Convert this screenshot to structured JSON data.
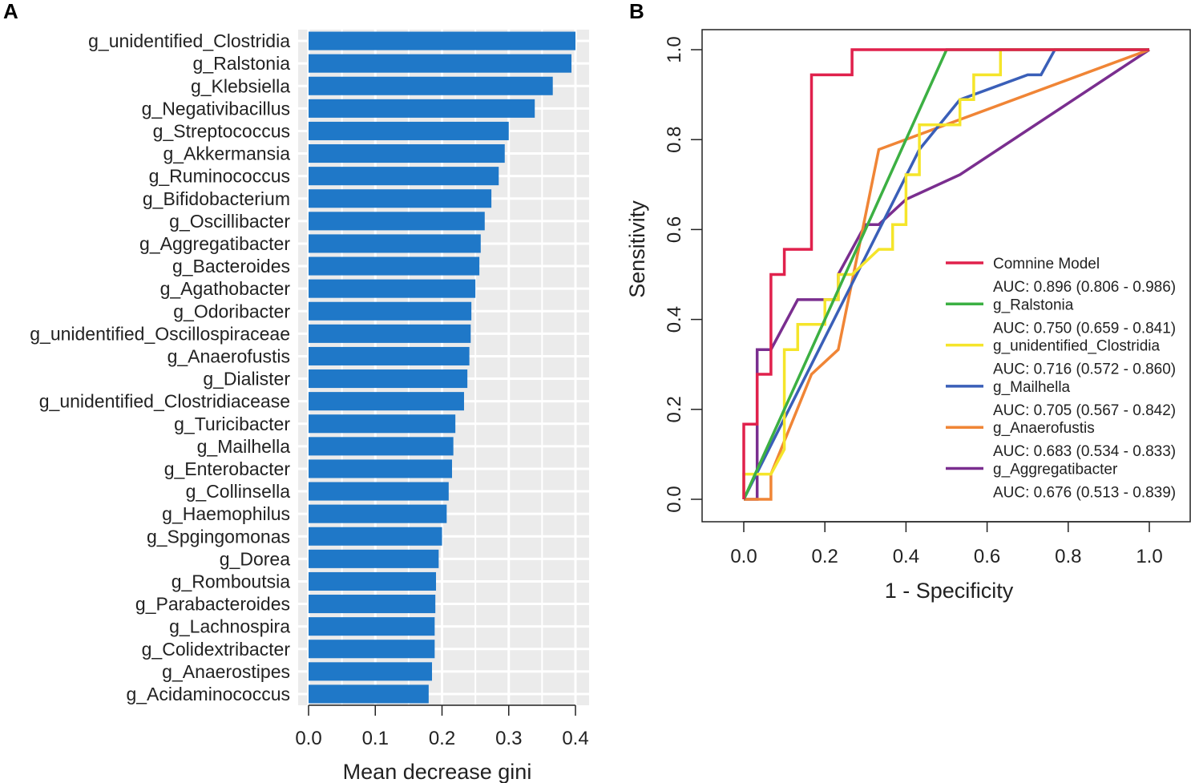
{
  "chart_data": [
    {
      "panel": "A",
      "type": "bar",
      "orientation": "horizontal",
      "xlabel": "Mean decrease gini",
      "ylabel": "",
      "xlim": [
        0.0,
        0.42
      ],
      "xticks": [
        "0.0",
        "0.1",
        "0.2",
        "0.3",
        "0.4"
      ],
      "grid": true,
      "bar_color": "#1f78c8",
      "background_color": "#ebebeb",
      "categories": [
        "g_unidentified_Clostridia",
        "g_Ralstonia",
        "g_Klebsiella",
        "g_Negativibacillus",
        "g_Streptococcus",
        "g_Akkermansia",
        "g_Ruminococcus",
        "g_Bifidobacterium",
        "g_Oscillibacter",
        "g_Aggregatibacter",
        "g_Bacteroides",
        "g_Agathobacter",
        "g_Odoribacter",
        "g_unidentified_Oscillospiraceae",
        "g_Anaerofustis",
        "g_Dialister",
        "g_unidentified_Clostridiacease",
        "g_Turicibacter",
        "g_Mailhella",
        "g_Enterobacter",
        "g_Collinsella",
        "g_Haemophilus",
        "g_Spgingomonas",
        "g_Dorea",
        "g_Romboutsia",
        "g_Parabacteroides",
        "g_Lachnospira",
        "g_Colidextribacter",
        "g_Anaerostipes",
        "g_Acidaminococcus"
      ],
      "values": [
        0.4,
        0.394,
        0.366,
        0.339,
        0.3,
        0.294,
        0.285,
        0.274,
        0.264,
        0.258,
        0.256,
        0.25,
        0.244,
        0.243,
        0.241,
        0.238,
        0.233,
        0.22,
        0.217,
        0.215,
        0.21,
        0.207,
        0.2,
        0.195,
        0.191,
        0.19,
        0.189,
        0.189,
        0.185,
        0.18
      ]
    },
    {
      "panel": "B",
      "type": "line",
      "xlabel": "1 - Specificity",
      "ylabel": "Sensitivity",
      "xlim": [
        -0.1,
        1.1
      ],
      "ylim": [
        -0.05,
        1.05
      ],
      "xticks": [
        "0.0",
        "0.2",
        "0.4",
        "0.6",
        "0.8",
        "1.0"
      ],
      "yticks": [
        "0.0",
        "0.2",
        "0.4",
        "0.6",
        "0.8",
        "1.0"
      ],
      "grid": false,
      "legend_position": "bottom-right",
      "series": [
        {
          "name": "Comnine Model",
          "auc": "AUC: 0.896 (0.806 - 0.986)",
          "color": "#e0214c",
          "x": [
            0,
            0,
            0.033,
            0.033,
            0.067,
            0.067,
            0.067,
            0.1,
            0.1,
            0.167,
            0.167,
            0.167,
            0.267,
            0.267,
            1
          ],
          "y": [
            0,
            0.167,
            0.167,
            0.278,
            0.278,
            0.5,
            0.5,
            0.5,
            0.556,
            0.556,
            0.944,
            0.944,
            0.944,
            1,
            1
          ]
        },
        {
          "name": "g_Ralstonia",
          "auc": "AUC: 0.750 (0.659 - 0.841)",
          "color": "#3cb043",
          "x": [
            0,
            0.5,
            1
          ],
          "y": [
            0,
            1,
            1
          ]
        },
        {
          "name": "g_unidentified_Clostridia",
          "auc": "AUC: 0.716 (0.572 - 0.860)",
          "color": "#f5e52a",
          "x": [
            0,
            0,
            0.067,
            0.067,
            0.1,
            0.1,
            0.133,
            0.133,
            0.167,
            0.2,
            0.2,
            0.233,
            0.233,
            0.267,
            0.333,
            0.367,
            0.367,
            0.4,
            0.4,
            0.433,
            0.433,
            0.467,
            0.5,
            0.533,
            0.533,
            0.567,
            0.567,
            0.633,
            0.633,
            1
          ],
          "y": [
            0,
            0.056,
            0.056,
            0.056,
            0.111,
            0.333,
            0.333,
            0.389,
            0.389,
            0.389,
            0.444,
            0.444,
            0.5,
            0.5,
            0.556,
            0.556,
            0.611,
            0.611,
            0.722,
            0.722,
            0.833,
            0.833,
            0.833,
            0.833,
            0.889,
            0.889,
            0.944,
            0.944,
            1,
            1
          ]
        },
        {
          "name": "g_Mailhella",
          "auc": "AUC: 0.705 (0.567 - 0.842)",
          "color": "#3a5fb8",
          "x": [
            0,
            0.433,
            0.533,
            0.7,
            0.733,
            0.767,
            1
          ],
          "y": [
            0,
            0.778,
            0.889,
            0.944,
            0.944,
            1,
            1
          ]
        },
        {
          "name": "g_Anaerofustis",
          "auc": "AUC: 0.683 (0.534 - 0.833)",
          "color": "#f08536",
          "x": [
            0,
            0.067,
            0.067,
            0.167,
            0.233,
            0.333,
            1
          ],
          "y": [
            0,
            0,
            0.056,
            0.278,
            0.333,
            0.778,
            1
          ]
        },
        {
          "name": "g_Aggregatibacter",
          "auc": "AUC: 0.676 (0.513 - 0.839)",
          "color": "#7a2e8f",
          "x": [
            0,
            0.033,
            0.033,
            0.067,
            0.133,
            0.233,
            0.233,
            0.3,
            0.333,
            0.4,
            0.533,
            1
          ],
          "y": [
            0,
            0,
            0.333,
            0.333,
            0.444,
            0.444,
            0.5,
            0.611,
            0.611,
            0.667,
            0.722,
            1
          ]
        }
      ]
    }
  ],
  "panels": {
    "a_label": "A",
    "b_label": "B"
  }
}
